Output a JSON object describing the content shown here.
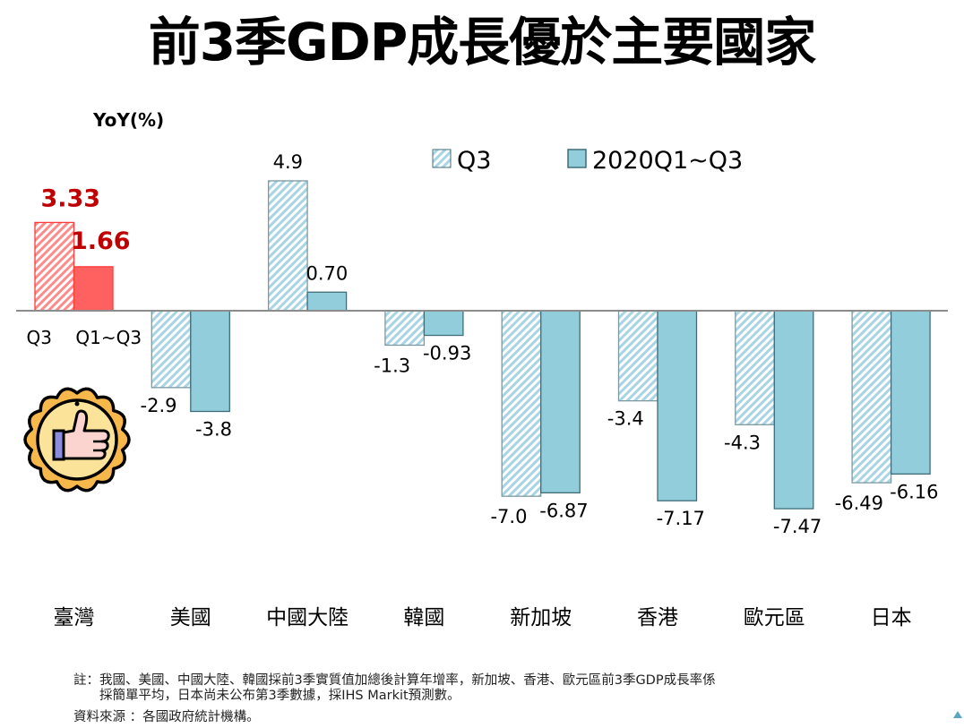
{
  "page": {
    "title": "前3季GDP成長優於主要國家",
    "notes": [
      "註：我國、美國、中國大陸、韓國採前3季實質值加總後計算年增率，新加坡、香港、歐元區前3季GDP成長率係",
      "　　採簡單平均，日本尚未公布第3季數據，採IHS Markit預測數。",
      "資料來源 ：各國政府統計機構。"
    ],
    "badge_icon": "thumbs-up-medal-icon",
    "corner_icon": "triangle-icon"
  },
  "chart_data": {
    "type": "bar",
    "title": "前3季GDP成長優於主要國家",
    "ylabel": "YoY(%)",
    "xlabel": "",
    "ylim": [
      -9,
      5.5
    ],
    "grid": false,
    "legend_position": "top-right",
    "categories": [
      "臺灣",
      "美國",
      "中國大陸",
      "韓國",
      "新加坡",
      "香港",
      "歐元區",
      "日本"
    ],
    "series": [
      {
        "name": "Q3",
        "pattern": "hatched",
        "color": "#9fcfdf",
        "values": [
          3.33,
          -2.9,
          4.9,
          -1.3,
          -7.0,
          -3.4,
          -4.3,
          -6.49
        ],
        "labels": [
          "3.33",
          "-2.9",
          "4.9",
          "-1.3",
          "-7.0",
          "-3.4",
          "-4.3",
          "-6.49"
        ]
      },
      {
        "name": "2020Q1~Q3",
        "pattern": "solid",
        "color": "#92cddc",
        "values": [
          1.66,
          -3.8,
          0.7,
          -0.93,
          -6.87,
          -7.17,
          -7.47,
          -6.16
        ],
        "labels": [
          "1.66",
          "-3.8",
          "0.70",
          "-0.93",
          "-6.87",
          "-7.17",
          "-7.47",
          "-6.16"
        ]
      }
    ],
    "highlight": {
      "category": "臺灣",
      "color": "#ff6161",
      "label_color": "#c00000",
      "bar_sublabels": [
        "Q3",
        "Q1~Q3"
      ]
    },
    "colors": {
      "axis": "#8c8c8c",
      "bar_stroke": "#3f6e7a"
    }
  }
}
